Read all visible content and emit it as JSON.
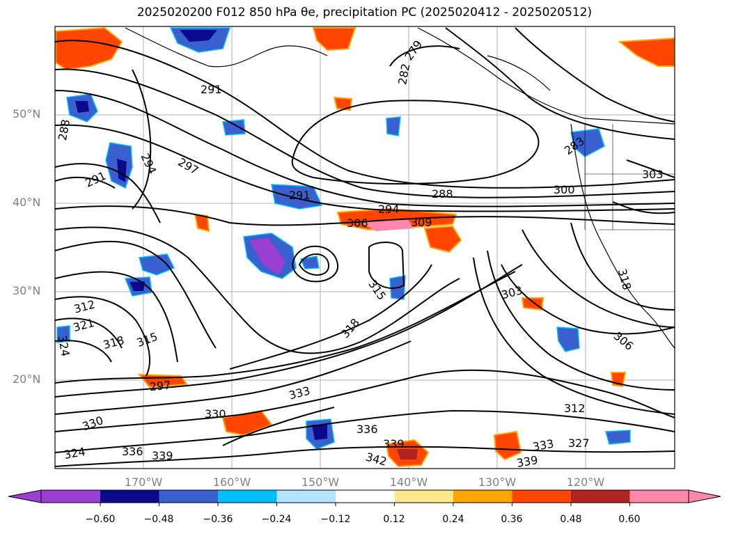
{
  "title": "2025020200 F012 850 hPa θe, precipitation PC (2025020412 - 2025020512)",
  "map": {
    "lat_labels": [
      "50°N",
      "40°N",
      "30°N",
      "20°N"
    ],
    "lon_labels": [
      "170°W",
      "160°W",
      "150°W",
      "140°W",
      "130°W",
      "120°W"
    ],
    "grid_color": "#b0b0b0",
    "contour_color": "#000000",
    "contour_labels": [
      "291",
      "294",
      "297",
      "291",
      "288",
      "282",
      "279",
      "288",
      "291",
      "294",
      "297",
      "300",
      "303",
      "306",
      "309",
      "312",
      "315",
      "315",
      "318",
      "318",
      "321",
      "324",
      "324",
      "327",
      "330",
      "330",
      "333",
      "333",
      "336",
      "336",
      "339",
      "339",
      "342",
      "339",
      "303",
      "306",
      "312",
      "318",
      "283"
    ]
  },
  "colorbar": {
    "tick_labels": [
      "−0.60",
      "−0.48",
      "−0.36",
      "−0.24",
      "−0.12",
      "0.12",
      "0.24",
      "0.36",
      "0.48",
      "0.60"
    ],
    "colors": [
      "#9a3fd1",
      "#0a0a8c",
      "#3a5fcf",
      "#00bfff",
      "#b3e3ff",
      "#ffffff",
      "#ffe68a",
      "#ffa500",
      "#ff4500",
      "#b22222",
      "#ff88aa"
    ],
    "extend": "both"
  }
}
